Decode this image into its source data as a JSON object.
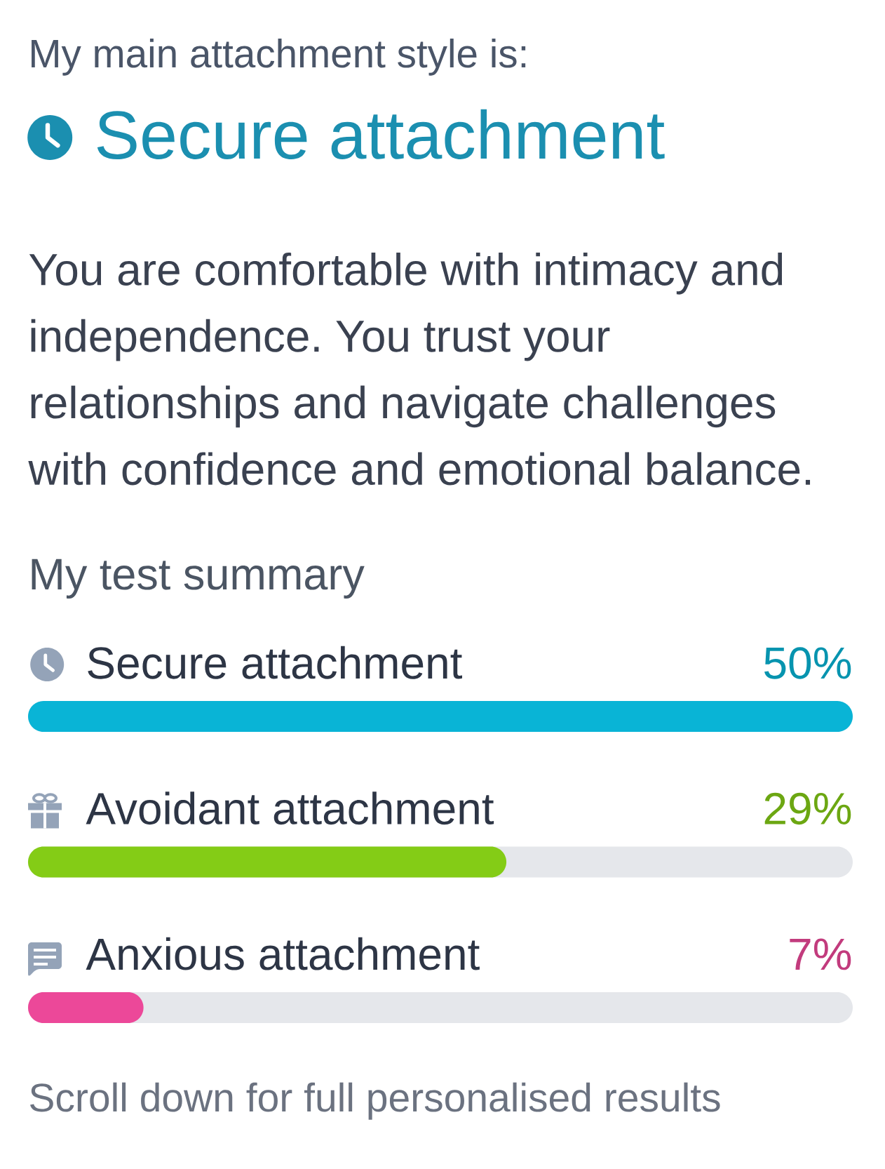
{
  "chart_data": {
    "type": "bar",
    "orientation": "horizontal",
    "title": "My test summary",
    "annotations": [
      "My main attachment style is:",
      "Secure attachment",
      "You are comfortable with intimacy and independence. You trust your relationships and navigate challenges with confidence and emotional balance.",
      "Scroll down for full personalised results"
    ],
    "categories": [
      "Secure attachment",
      "Avoidant attachment",
      "Anxious attachment"
    ],
    "values": [
      50,
      29,
      7
    ],
    "colors": [
      "#09b4d6",
      "#84cc16",
      "#ec4899"
    ],
    "value_labels": [
      "50%",
      "29%",
      "7%"
    ],
    "xlim": [
      0,
      50
    ],
    "tick_labels": "y"
  }
}
